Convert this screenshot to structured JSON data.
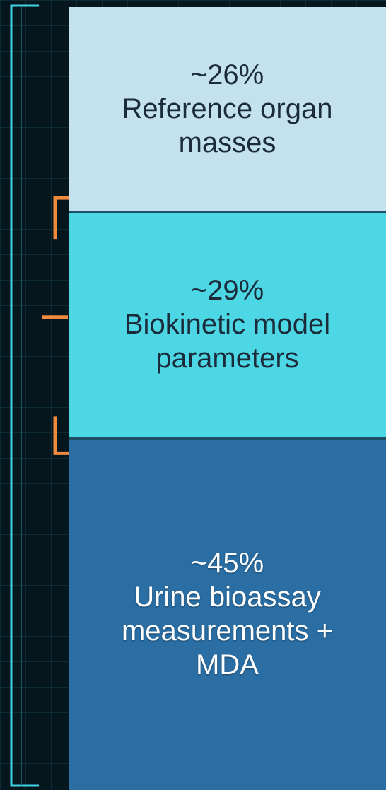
{
  "chart_data": {
    "type": "stacked_bar",
    "categories": [
      "Reference organ masses",
      "Biokinetic model parameters",
      "Urine bioassay measurements + MDA"
    ],
    "values": [
      26,
      29,
      45
    ],
    "value_labels": [
      "~26%",
      "~29%",
      "~45%"
    ],
    "colors": [
      "#c4e2ed",
      "#4dd7e5",
      "#2a6ea4"
    ],
    "ylim": [
      0,
      100
    ]
  }
}
